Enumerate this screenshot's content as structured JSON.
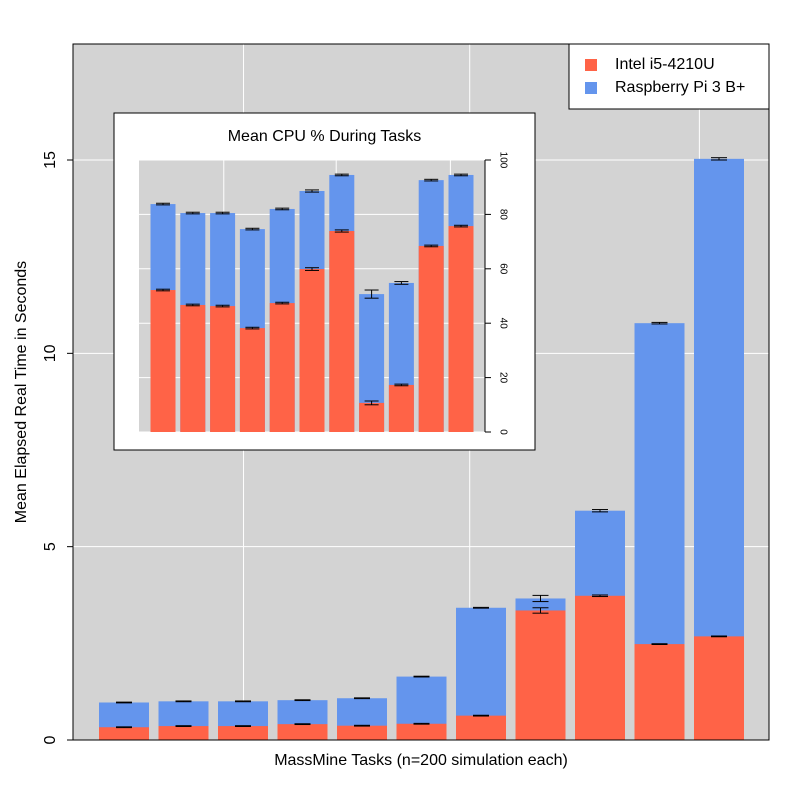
{
  "chart_data": [
    {
      "type": "bar",
      "xlabel": "MassMine Tasks (n=200 simulation each)",
      "ylabel": "Mean Elapsed Real Time in Seconds",
      "ylim": [
        0,
        18
      ],
      "yticks": [
        0,
        5,
        10,
        15
      ],
      "grid": true,
      "legend": "top-right",
      "yaxis_side": "left",
      "series": [
        {
          "name": "Intel i5-4210U",
          "color": "#ff6347",
          "values": [
            0.33,
            0.36,
            0.36,
            0.41,
            0.37,
            0.42,
            0.63,
            3.35,
            3.73,
            2.48,
            2.68
          ],
          "errors": [
            0.01,
            0.01,
            0.01,
            0.01,
            0.01,
            0.01,
            0.01,
            0.07,
            0.02,
            0.01,
            0.01
          ]
        },
        {
          "name": "Raspberry Pi 3 B+",
          "color": "#6495ed",
          "values": [
            0.97,
            1.0,
            1.0,
            1.03,
            1.08,
            1.64,
            3.42,
            3.66,
            5.93,
            10.78,
            15.03
          ],
          "errors": [
            0.01,
            0.01,
            0.01,
            0.01,
            0.01,
            0.01,
            0.01,
            0.08,
            0.03,
            0.02,
            0.03
          ]
        }
      ]
    },
    {
      "type": "bar",
      "title": "Mean CPU % During Tasks",
      "ylim": [
        0,
        100
      ],
      "yticks": [
        0,
        20,
        40,
        60,
        80,
        100
      ],
      "grid": true,
      "yaxis_side": "right",
      "series": [
        {
          "name": "Intel i5-4210U",
          "color": "#ff6347",
          "values": [
            52.2,
            46.7,
            46.3,
            38.2,
            47.4,
            59.9,
            73.9,
            10.7,
            17.3,
            68.4,
            75.7
          ],
          "errors": [
            0.3,
            0.3,
            0.3,
            0.3,
            0.3,
            0.5,
            0.4,
            0.7,
            0.3,
            0.3,
            0.3
          ]
        },
        {
          "name": "Raspberry Pi 3 B+",
          "color": "#6495ed",
          "values": [
            83.8,
            80.5,
            80.5,
            74.6,
            82.0,
            88.6,
            94.5,
            50.7,
            54.8,
            92.6,
            94.5
          ],
          "errors": [
            0.3,
            0.3,
            0.3,
            0.3,
            0.3,
            0.4,
            0.3,
            1.5,
            0.5,
            0.3,
            0.3
          ]
        }
      ]
    }
  ]
}
